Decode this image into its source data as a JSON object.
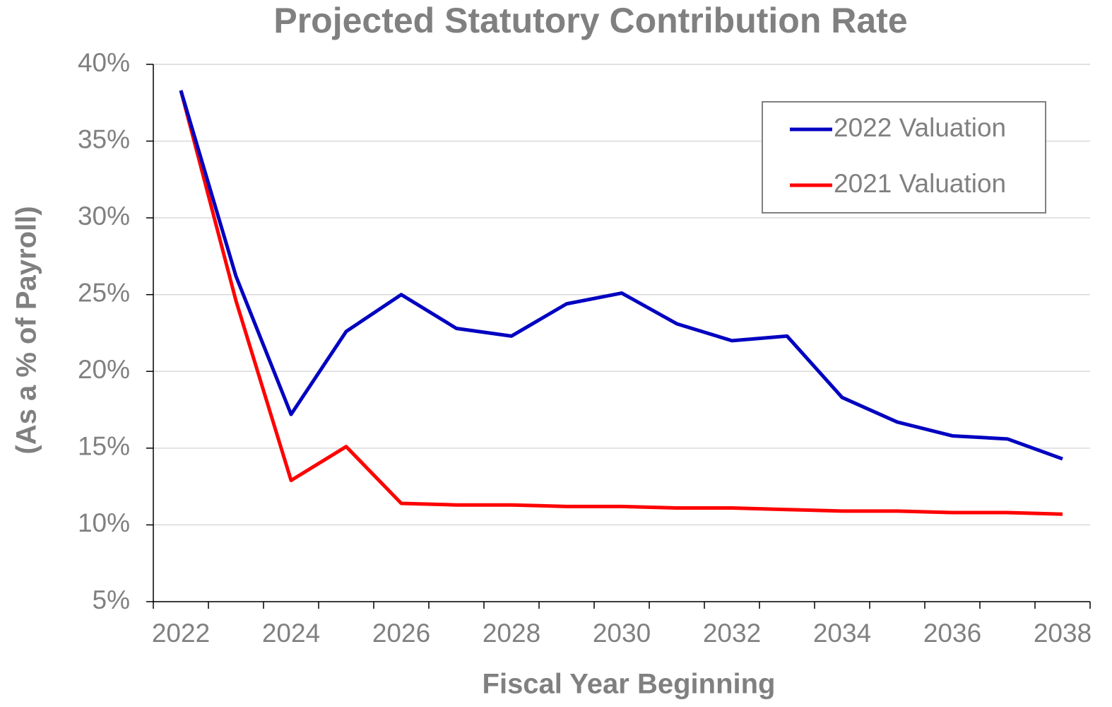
{
  "chart_data": {
    "type": "line",
    "title": "Projected Statutory Contribution Rate",
    "x_label": "Fiscal Year Beginning",
    "y_label": "(As a % of Payroll)",
    "categories": [
      "2022",
      null,
      "2024",
      null,
      "2026",
      null,
      "2028",
      null,
      "2030",
      null,
      "2032",
      null,
      "2034",
      null,
      "2036",
      null,
      "2038"
    ],
    "series": [
      {
        "name": "2022 Valuation",
        "color": "#0000c0",
        "values": [
          38.3,
          26.2,
          17.2,
          22.6,
          25.0,
          22.8,
          22.3,
          24.4,
          25.1,
          23.1,
          22.0,
          22.3,
          18.3,
          16.7,
          15.8,
          15.6,
          14.3
        ]
      },
      {
        "name": "2021 Valuation",
        "color": "#ff0000",
        "values": [
          38.3,
          24.6,
          12.9,
          15.1,
          11.4,
          11.3,
          11.3,
          11.2,
          11.2,
          11.1,
          11.1,
          11.0,
          10.9,
          10.9,
          10.8,
          10.8,
          10.7
        ]
      }
    ],
    "ylim": [
      5,
      40
    ],
    "yticks": [
      {
        "value": 5,
        "label": "5%"
      },
      {
        "value": 10,
        "label": "10%"
      },
      {
        "value": 15,
        "label": "15%"
      },
      {
        "value": 20,
        "label": "20%"
      },
      {
        "value": 25,
        "label": "25%"
      },
      {
        "value": 30,
        "label": "30%"
      },
      {
        "value": 35,
        "label": "35%"
      },
      {
        "value": 40,
        "label": "40%"
      }
    ],
    "grid": true,
    "legend": "upper right"
  }
}
